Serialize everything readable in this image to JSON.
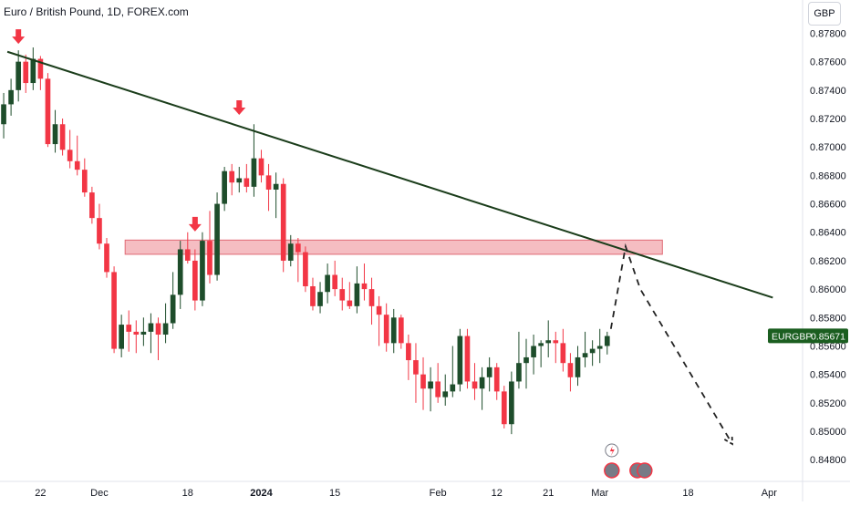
{
  "header": {
    "title": "Euro / British Pound, 1D, FOREX.com",
    "currency_button": "GBP"
  },
  "price_tag": {
    "symbol": "EURGBP",
    "price": "0.85671",
    "color": "#1b5e20"
  },
  "colors": {
    "up_candle": "#1e4d2b",
    "down_candle": "#f23645",
    "trendline": "#1b3d1b",
    "zone_fill": "#f2a7ae",
    "zone_border": "#e06a74",
    "arrow": "#f23645",
    "projection": "#222222"
  },
  "chart_data": {
    "type": "candlestick",
    "symbol": "EURGBP",
    "timeframe": "1D",
    "source": "FOREX.com",
    "y_ticks": [
      "0.87800",
      "0.87600",
      "0.87400",
      "0.87200",
      "0.87000",
      "0.86800",
      "0.86600",
      "0.86400",
      "0.86200",
      "0.86000",
      "0.85800",
      "0.85600",
      "0.85400",
      "0.85200",
      "0.85000",
      "0.84800"
    ],
    "y_range": [
      0.8475,
      0.8788
    ],
    "x_ticks": [
      {
        "label": "22",
        "bar": 5,
        "bold": false
      },
      {
        "label": "Dec",
        "bar": 13,
        "bold": false
      },
      {
        "label": "18",
        "bar": 25,
        "bold": false
      },
      {
        "label": "2024",
        "bar": 35,
        "bold": true
      },
      {
        "label": "15",
        "bar": 45,
        "bold": false
      },
      {
        "label": "Feb",
        "bar": 59,
        "bold": false
      },
      {
        "label": "12",
        "bar": 67,
        "bold": false
      },
      {
        "label": "21",
        "bar": 74,
        "bold": false
      },
      {
        "label": "Mar",
        "bar": 81,
        "bold": false
      },
      {
        "label": "18",
        "bar": 93,
        "bold": false
      },
      {
        "label": "Apr",
        "bar": 104,
        "bold": false
      }
    ],
    "candles": [
      [
        0.8716,
        0.8738,
        0.8706,
        0.873
      ],
      [
        0.873,
        0.8748,
        0.8722,
        0.874
      ],
      [
        0.874,
        0.8768,
        0.8732,
        0.876
      ],
      [
        0.876,
        0.8765,
        0.8738,
        0.8745
      ],
      [
        0.8745,
        0.877,
        0.874,
        0.8762
      ],
      [
        0.8762,
        0.8764,
        0.874,
        0.8748
      ],
      [
        0.8748,
        0.8752,
        0.87,
        0.8702
      ],
      [
        0.8702,
        0.8726,
        0.8696,
        0.8716
      ],
      [
        0.8716,
        0.872,
        0.8694,
        0.8698
      ],
      [
        0.8698,
        0.8712,
        0.8685,
        0.869
      ],
      [
        0.869,
        0.8708,
        0.868,
        0.8684
      ],
      [
        0.8684,
        0.8692,
        0.8665,
        0.8668
      ],
      [
        0.8668,
        0.8672,
        0.8646,
        0.865
      ],
      [
        0.865,
        0.866,
        0.8628,
        0.8632
      ],
      [
        0.8632,
        0.8636,
        0.8608,
        0.8612
      ],
      [
        0.8612,
        0.8616,
        0.8555,
        0.8558
      ],
      [
        0.8558,
        0.8582,
        0.8552,
        0.8575
      ],
      [
        0.8575,
        0.8585,
        0.8556,
        0.857
      ],
      [
        0.857,
        0.8578,
        0.8555,
        0.8568
      ],
      [
        0.8568,
        0.858,
        0.856,
        0.857
      ],
      [
        0.857,
        0.8583,
        0.8555,
        0.8576
      ],
      [
        0.8576,
        0.858,
        0.855,
        0.8568
      ],
      [
        0.8568,
        0.859,
        0.8562,
        0.8576
      ],
      [
        0.8576,
        0.8612,
        0.8572,
        0.8596
      ],
      [
        0.8596,
        0.8634,
        0.8586,
        0.8628
      ],
      [
        0.8628,
        0.864,
        0.8618,
        0.862
      ],
      [
        0.862,
        0.8628,
        0.8585,
        0.8592
      ],
      [
        0.8592,
        0.864,
        0.8588,
        0.8634
      ],
      [
        0.8634,
        0.8655,
        0.8604,
        0.861
      ],
      [
        0.861,
        0.8668,
        0.8606,
        0.866
      ],
      [
        0.866,
        0.8686,
        0.8655,
        0.8683
      ],
      [
        0.8683,
        0.8688,
        0.8666,
        0.8675
      ],
      [
        0.8675,
        0.8686,
        0.8668,
        0.8678
      ],
      [
        0.8678,
        0.8688,
        0.8668,
        0.8672
      ],
      [
        0.8672,
        0.8716,
        0.8665,
        0.8692
      ],
      [
        0.8692,
        0.8698,
        0.8675,
        0.868
      ],
      [
        0.868,
        0.8688,
        0.8655,
        0.867
      ],
      [
        0.867,
        0.8682,
        0.865,
        0.8674
      ],
      [
        0.8674,
        0.8678,
        0.8612,
        0.862
      ],
      [
        0.862,
        0.8638,
        0.8616,
        0.8632
      ],
      [
        0.8632,
        0.8636,
        0.8605,
        0.8626
      ],
      [
        0.8626,
        0.863,
        0.8598,
        0.8602
      ],
      [
        0.8602,
        0.8608,
        0.8585,
        0.8588
      ],
      [
        0.8588,
        0.8605,
        0.8583,
        0.8598
      ],
      [
        0.8598,
        0.8618,
        0.859,
        0.861
      ],
      [
        0.861,
        0.862,
        0.8595,
        0.86
      ],
      [
        0.86,
        0.8608,
        0.8585,
        0.8592
      ],
      [
        0.8592,
        0.8605,
        0.8586,
        0.8588
      ],
      [
        0.8588,
        0.8616,
        0.8583,
        0.8604
      ],
      [
        0.8604,
        0.8618,
        0.8592,
        0.86
      ],
      [
        0.86,
        0.8608,
        0.8575,
        0.8588
      ],
      [
        0.8588,
        0.8595,
        0.856,
        0.8582
      ],
      [
        0.8582,
        0.859,
        0.8556,
        0.8562
      ],
      [
        0.8562,
        0.8586,
        0.8555,
        0.858
      ],
      [
        0.858,
        0.8582,
        0.8558,
        0.8562
      ],
      [
        0.8562,
        0.8568,
        0.8536,
        0.855
      ],
      [
        0.855,
        0.8562,
        0.852,
        0.854
      ],
      [
        0.854,
        0.8552,
        0.8515,
        0.853
      ],
      [
        0.853,
        0.8545,
        0.8514,
        0.8535
      ],
      [
        0.8535,
        0.8548,
        0.852,
        0.8524
      ],
      [
        0.8524,
        0.854,
        0.8518,
        0.8528
      ],
      [
        0.8528,
        0.856,
        0.8524,
        0.8533
      ],
      [
        0.8533,
        0.8572,
        0.8528,
        0.8567
      ],
      [
        0.8567,
        0.8572,
        0.853,
        0.8535
      ],
      [
        0.8535,
        0.8548,
        0.8522,
        0.853
      ],
      [
        0.853,
        0.8545,
        0.8515,
        0.8538
      ],
      [
        0.8538,
        0.8552,
        0.8528,
        0.8545
      ],
      [
        0.8545,
        0.8548,
        0.8522,
        0.8528
      ],
      [
        0.8528,
        0.8532,
        0.8502,
        0.8505
      ],
      [
        0.8505,
        0.8542,
        0.8498,
        0.8535
      ],
      [
        0.8535,
        0.857,
        0.853,
        0.8548
      ],
      [
        0.8548,
        0.8565,
        0.853,
        0.8552
      ],
      [
        0.8552,
        0.8568,
        0.854,
        0.856
      ],
      [
        0.856,
        0.8564,
        0.8545,
        0.8562
      ],
      [
        0.8562,
        0.8578,
        0.8552,
        0.8564
      ],
      [
        0.8564,
        0.857,
        0.8548,
        0.8562
      ],
      [
        0.8562,
        0.8572,
        0.8542,
        0.8548
      ],
      [
        0.8548,
        0.8555,
        0.8528,
        0.8538
      ],
      [
        0.8538,
        0.856,
        0.8532,
        0.8552
      ],
      [
        0.8552,
        0.857,
        0.8545,
        0.8555
      ],
      [
        0.8555,
        0.8564,
        0.8546,
        0.8558
      ],
      [
        0.8558,
        0.8572,
        0.8548,
        0.856
      ],
      [
        0.856,
        0.857,
        0.8554,
        0.8567
      ]
    ],
    "trendline": [
      {
        "bar": 1,
        "price": 0.8767
      },
      {
        "bar": 105,
        "price": 0.8594
      }
    ],
    "resistance_zone": {
      "bar_from": 17,
      "bar_to": 90,
      "price_top": 0.86345,
      "price_bottom": 0.86245
    },
    "swing_high_arrows": [
      {
        "bar": 2,
        "price": 0.877
      },
      {
        "bar": 32,
        "price": 0.872
      },
      {
        "bar": 26,
        "price": 0.8638
      }
    ],
    "projection_path": [
      {
        "bar": 83.0,
        "price": 0.8572
      },
      {
        "bar": 85.0,
        "price": 0.863
      },
      {
        "bar": 87.0,
        "price": 0.86
      },
      {
        "bar": 99.5,
        "price": 0.8491
      }
    ],
    "last_price": 0.85671,
    "grid": false,
    "legend": "none"
  }
}
